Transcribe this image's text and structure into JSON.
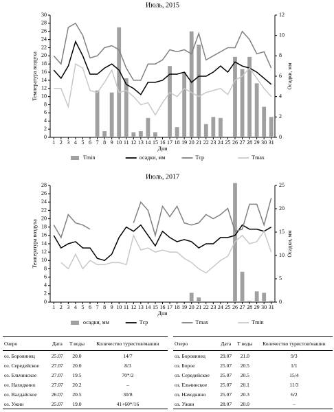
{
  "chart_data": [
    {
      "type": "combo",
      "title": "Июль, 2015",
      "y_label": "Температура воздуха",
      "y2_label": "Осадки, мм",
      "x_label": "Дни",
      "x": [
        1,
        2,
        3,
        4,
        5,
        6,
        7,
        8,
        9,
        10,
        11,
        12,
        13,
        14,
        15,
        16,
        17,
        18,
        19,
        20,
        21,
        22,
        23,
        24,
        25,
        26,
        27,
        28,
        29,
        30,
        31
      ],
      "xlim": [
        0.5,
        31.5
      ],
      "ylim": [
        0,
        30
      ],
      "yticks": [
        0,
        2,
        4,
        6,
        8,
        10,
        12,
        14,
        16,
        18,
        20,
        22,
        24,
        26,
        28,
        30
      ],
      "y2lim": [
        0,
        12
      ],
      "y2ticks": [
        0,
        2,
        4,
        6,
        8,
        10,
        12
      ],
      "series": [
        {
          "name": "Tmin",
          "type": "bar",
          "axis": "y2",
          "color": "#a0a0a0",
          "values": [
            0,
            0,
            0,
            0,
            0,
            0,
            4.6,
            0.6,
            4.4,
            10.8,
            5.8,
            0.5,
            0.6,
            1.9,
            0.5,
            0,
            7,
            1,
            6.4,
            10.4,
            9.1,
            1.3,
            2,
            1.9,
            0,
            7.9,
            6.7,
            7.9,
            5.3,
            3,
            2
          ]
        },
        {
          "name": "осадки, мм",
          "type": "line",
          "color": "#000000",
          "values": [
            16.5,
            14.5,
            17.5,
            23.5,
            20,
            15.5,
            15.5,
            17,
            18,
            16.5,
            13,
            12,
            10.5,
            13.5,
            13.5,
            14,
            15.5,
            15.5,
            16,
            13.5,
            15,
            15,
            16,
            17.5,
            16,
            18.5,
            17.5,
            17,
            16,
            14.5,
            13
          ]
        },
        {
          "name": "Tср",
          "type": "line",
          "color": "#808080",
          "values": [
            20,
            18,
            27,
            28,
            25,
            19.5,
            20,
            22,
            22.5,
            21.5,
            17,
            14,
            14,
            18,
            18,
            19,
            21.5,
            21,
            21.5,
            20.5,
            25.5,
            19,
            20,
            21,
            22,
            22,
            26,
            24,
            20.5,
            21,
            17
          ]
        },
        {
          "name": "Tmax",
          "type": "line",
          "color": "#c8c8c8",
          "values": [
            12,
            12,
            7.5,
            18,
            17,
            11.5,
            11,
            13.5,
            16.5,
            11,
            11.5,
            10,
            8,
            8.5,
            5.5,
            8.5,
            11,
            10,
            12,
            11,
            10,
            11,
            11.5,
            12,
            10.5,
            14,
            15,
            17,
            14.5,
            12,
            10
          ]
        }
      ]
    },
    {
      "type": "combo",
      "title": "Июль, 2017",
      "y_label": "Температура воздуха",
      "y2_label": "Осадки, мм",
      "x_label": "Дни",
      "x": [
        1,
        2,
        3,
        4,
        5,
        6,
        7,
        8,
        9,
        10,
        11,
        12,
        13,
        14,
        15,
        16,
        17,
        18,
        19,
        20,
        21,
        22,
        23,
        24,
        25,
        26,
        27,
        28,
        29,
        30,
        31
      ],
      "xlim": [
        0.5,
        31.5
      ],
      "ylim": [
        0,
        28
      ],
      "yticks": [
        0,
        2,
        4,
        6,
        8,
        10,
        12,
        14,
        16,
        18,
        20,
        22,
        24,
        26,
        28
      ],
      "y2lim": [
        0,
        25
      ],
      "y2ticks": [
        0,
        5,
        10,
        15,
        20,
        25
      ],
      "series": [
        {
          "name": "осадки, мм",
          "type": "bar",
          "axis": "y2",
          "color": "#a0a0a0",
          "values": [
            0,
            0,
            0,
            0,
            0,
            0,
            0,
            0,
            0,
            0,
            0,
            0,
            0,
            0,
            0,
            0,
            0,
            0,
            0,
            2,
            1,
            0,
            0,
            0,
            0,
            25.5,
            6.5,
            0.3,
            2.3,
            2,
            0.3
          ]
        },
        {
          "name": "Tср",
          "type": "line",
          "color": "#000000",
          "values": [
            16,
            13,
            14,
            14.5,
            13,
            13,
            10.5,
            10,
            11.5,
            15.5,
            18,
            17,
            18.5,
            16,
            13.5,
            17,
            15.5,
            14.5,
            15,
            14.5,
            13,
            14,
            14,
            15.5,
            15.5,
            16,
            18.5,
            17.5,
            17.5,
            17,
            18
          ]
        },
        {
          "name": "Tmax",
          "type": "line",
          "color": "#808080",
          "values": [
            18.5,
            15.5,
            21,
            19,
            18.5,
            17.5,
            null,
            null,
            null,
            null,
            null,
            19,
            24,
            22,
            16,
            23,
            20.5,
            23,
            19,
            18.5,
            19,
            21,
            20,
            21,
            22.5,
            17,
            17.5,
            23.5,
            23.5,
            18.5,
            25
          ]
        },
        {
          "name": "Tmin",
          "type": "line",
          "color": "#c8c8c8",
          "values": [
            null,
            9.5,
            8,
            11.5,
            8,
            10,
            9,
            9,
            9.5,
            9.5,
            9,
            16,
            12.5,
            13,
            12,
            12.5,
            12,
            12,
            10.5,
            9.5,
            8,
            7,
            8.5,
            10,
            11,
            14.5,
            16,
            14,
            14.5,
            17,
            12
          ]
        }
      ]
    }
  ],
  "tables": [
    {
      "header": [
        "Озеро",
        "Дата",
        "T воды",
        "Количество туристов/машин"
      ],
      "rows": [
        [
          "оз. Боровинец",
          "25.07",
          "20.0",
          "14/7"
        ],
        [
          "оз. Середейское",
          "27.07",
          "20.0",
          "8/3"
        ],
        [
          "оз. Ельчинское",
          "27.07",
          "19.5",
          "70*/2"
        ],
        [
          "оз. Находкино",
          "27.07",
          "20.2",
          "–"
        ],
        [
          "оз. Валдайское",
          "26.07",
          "20.5",
          "30/8"
        ],
        [
          "оз. Ужин",
          "25.07",
          "19.0",
          "41+60*/16"
        ]
      ]
    },
    {
      "header": [
        "Озеро",
        "Дата",
        "T воды",
        "Количество туристов/машин"
      ],
      "rows": [
        [
          "оз. Боровинец",
          "29.07",
          "21.0",
          "9/3"
        ],
        [
          "оз. Борое",
          "25.07",
          "20.5",
          "1/1"
        ],
        [
          "оз. Середейское",
          "25.07",
          "20.5",
          "15/4"
        ],
        [
          "оз. Ельчинское",
          "25.07",
          "20.1",
          "11/3"
        ],
        [
          "оз. Находкино",
          "25.07",
          "20.3",
          "6/2"
        ],
        [
          "оз. Ужин",
          "28.07",
          "20.0",
          "–"
        ]
      ]
    }
  ]
}
